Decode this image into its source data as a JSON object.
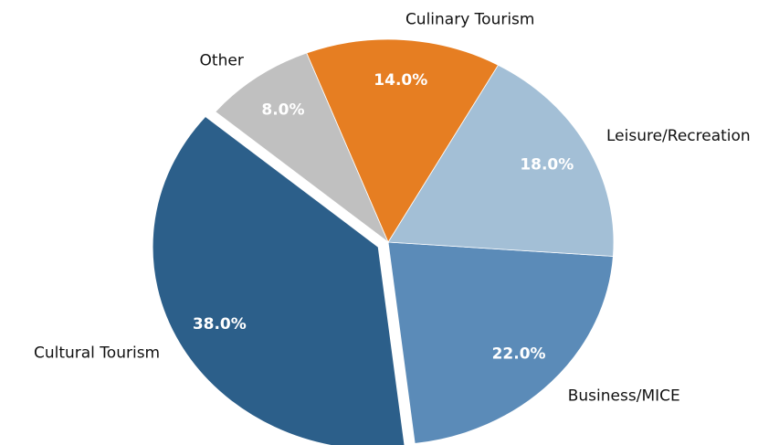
{
  "chart_data": {
    "type": "pie",
    "categories": [
      "Cultural Tourism",
      "Business/MICE",
      "Leisure/Recreation",
      "Culinary Tourism",
      "Other"
    ],
    "values": [
      38,
      22,
      18,
      14,
      8
    ],
    "value_labels": [
      "38.0%",
      "22.0%",
      "18.0%",
      "14.0%",
      "8.0%"
    ],
    "colors": [
      "#2c5f8a",
      "#5b8bb8",
      "#a3bfd6",
      "#e67e22",
      "#c0c0c0"
    ],
    "explode": [
      0.05,
      0,
      0,
      0,
      0
    ],
    "startangle": 140
  }
}
